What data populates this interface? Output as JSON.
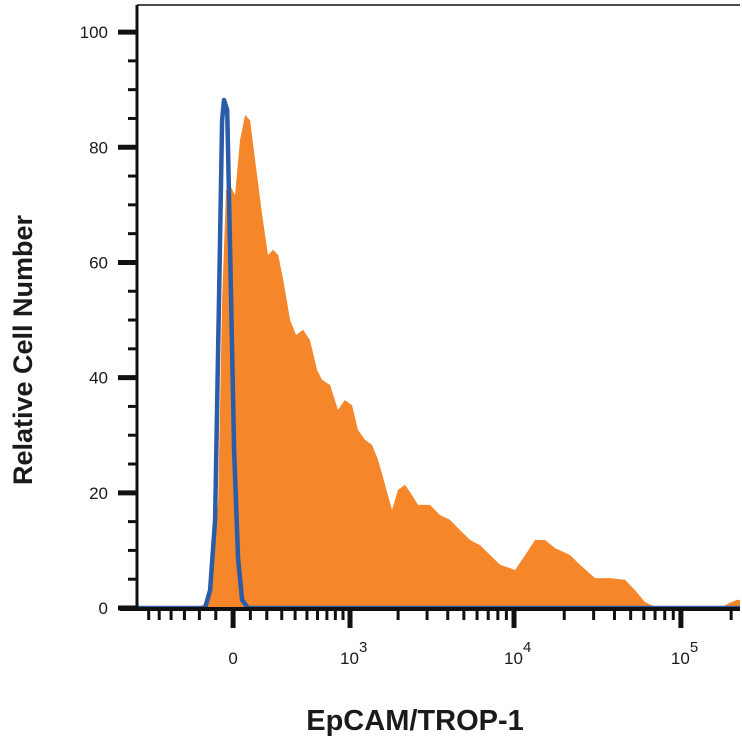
{
  "chart_data": {
    "type": "histogram-overlay",
    "xlabel": "EpCAM/TROP-1",
    "ylabel": "Relative Cell Number",
    "xscale": "asinh",
    "xscale_width": 415,
    "xlim": [
      -726,
      226000
    ],
    "ylim": [
      0,
      104.7
    ],
    "xticks": [
      {
        "value": 0,
        "label": "0"
      },
      {
        "value": 1000,
        "label": "10",
        "exponent": "3"
      },
      {
        "value": 10000,
        "label": "10",
        "exponent": "4"
      },
      {
        "value": 100000,
        "label": "10",
        "exponent": "5"
      }
    ],
    "xminor_ticks": [
      -600,
      -500,
      -400,
      -300,
      -200,
      -100,
      100,
      200,
      300,
      400,
      500,
      600,
      700,
      800,
      900,
      2000,
      3000,
      4000,
      5000,
      6000,
      7000,
      8000,
      9000,
      20000,
      30000,
      40000,
      50000,
      60000,
      70000,
      80000,
      90000,
      200000
    ],
    "yticks": [
      0,
      20,
      40,
      60,
      80,
      100
    ],
    "yminor_ticks": [
      5,
      10,
      15,
      25,
      30,
      35,
      45,
      50,
      55,
      65,
      70,
      75,
      85,
      90,
      95
    ],
    "series": [
      {
        "kind": "area",
        "color": "#f5862a",
        "x": [
          -195,
          -152,
          -122,
          -86,
          -63,
          -40,
          -17,
          11,
          40,
          69,
          98,
          128,
          171,
          208,
          241,
          275,
          310,
          361,
          408,
          466,
          528,
          596,
          648,
          737,
          834,
          925,
          1030,
          1125,
          1245,
          1382,
          1506,
          1664,
          1834,
          1996,
          2204,
          2432,
          2643,
          3129,
          3594,
          4129,
          4743,
          5449,
          6258,
          7188,
          8254,
          10151,
          11662,
          13363,
          15347,
          17596,
          21663,
          24858,
          30586,
          37599,
          46273,
          53120,
          61005,
          70135,
          80510,
          171395,
          196710,
          216630,
          226000
        ],
        "values": [
          0,
          1.4,
          4.9,
          18.8,
          53.5,
          72.6,
          73.4,
          71.7,
          81.3,
          85.6,
          84.7,
          77.8,
          68.2,
          61.3,
          62.2,
          61.3,
          57.0,
          50.0,
          47.4,
          48.3,
          46.5,
          41.3,
          39.6,
          38.7,
          34.4,
          36.1,
          35.2,
          30.9,
          29.2,
          28.3,
          25.7,
          21.4,
          17.0,
          20.5,
          21.4,
          19.6,
          17.9,
          17.9,
          16.1,
          15.3,
          13.5,
          11.8,
          10.9,
          9.2,
          7.5,
          6.6,
          9.2,
          11.8,
          11.8,
          10.4,
          9.2,
          7.5,
          5.2,
          5.2,
          4.9,
          3.1,
          1.0,
          0.2,
          0,
          0,
          0.9,
          1.4,
          1.4
        ]
      },
      {
        "kind": "line",
        "color": "#2a5caa",
        "x": [
          -726,
          -164,
          -134,
          -104,
          -81,
          -63,
          -52,
          -34,
          -17,
          6,
          29,
          52,
          86,
          226000
        ],
        "values": [
          0,
          0,
          3.1,
          15.3,
          53.5,
          84.7,
          88.2,
          86.5,
          62.2,
          27.4,
          8.5,
          1.4,
          0,
          0
        ]
      }
    ]
  }
}
